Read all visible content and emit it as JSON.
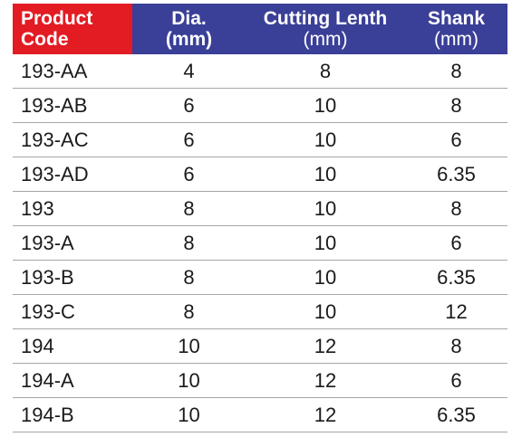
{
  "headers": {
    "code": [
      "Product",
      "Code"
    ],
    "dia": [
      "Dia.",
      "(mm)"
    ],
    "cutting": [
      "Cutting Lenth",
      "(mm)"
    ],
    "shank": [
      "Shank",
      "(mm)"
    ]
  },
  "rows": [
    {
      "code": "193-AA",
      "dia": "4",
      "cutting": "8",
      "shank": "8"
    },
    {
      "code": "193-AB",
      "dia": "6",
      "cutting": "10",
      "shank": "8"
    },
    {
      "code": "193-AC",
      "dia": "6",
      "cutting": "10",
      "shank": "6"
    },
    {
      "code": "193-AD",
      "dia": "6",
      "cutting": "10",
      "shank": "6.35"
    },
    {
      "code": "193",
      "dia": "8",
      "cutting": "10",
      "shank": "8"
    },
    {
      "code": "193-A",
      "dia": "8",
      "cutting": "10",
      "shank": "6"
    },
    {
      "code": "193-B",
      "dia": "8",
      "cutting": "10",
      "shank": "6.35"
    },
    {
      "code": "193-C",
      "dia": "8",
      "cutting": "10",
      "shank": "12"
    },
    {
      "code": "194",
      "dia": "10",
      "cutting": "12",
      "shank": "8"
    },
    {
      "code": "194-A",
      "dia": "10",
      "cutting": "12",
      "shank": "6"
    },
    {
      "code": "194-B",
      "dia": "10",
      "cutting": "12",
      "shank": "6.35"
    }
  ],
  "colors": {
    "code_header_bg": "#e31b23",
    "header_bg": "#3a3f97",
    "header_text": "#ffffff",
    "row_border": "#a6a6a6"
  }
}
